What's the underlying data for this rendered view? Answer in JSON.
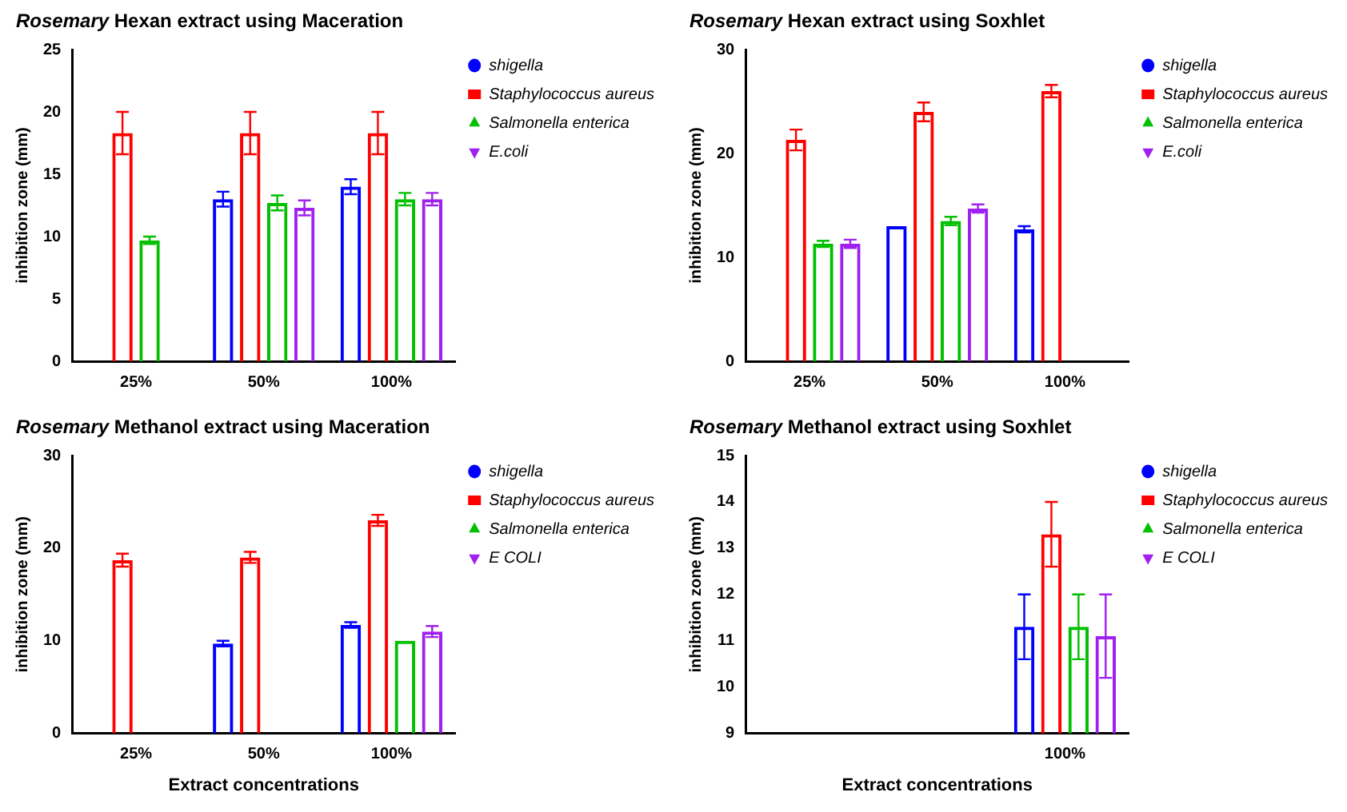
{
  "chart_data": [
    {
      "type": "bar",
      "title": "Rosemary Hexan extract using Maceration",
      "ylabel": "inhibition zone (mm)",
      "categories": [
        "25%",
        "50%",
        "100%"
      ],
      "ylim": [
        0,
        25
      ],
      "yticks": [
        0,
        5,
        10,
        15,
        20,
        25
      ],
      "legend": "right",
      "series": [
        {
          "name": "shigella",
          "color": "#0000ff",
          "marker": "circle",
          "values": [
            0,
            13,
            14
          ],
          "errors": [
            null,
            0.6,
            0.6
          ]
        },
        {
          "name": "Staphylococcus aureus",
          "color": "#ff0000",
          "marker": "square",
          "values": [
            18.3,
            18.3,
            18.3
          ],
          "errors": [
            1.7,
            1.7,
            1.7
          ]
        },
        {
          "name": "Salmonella enterica",
          "color": "#00c000",
          "marker": "triangle",
          "values": [
            9.7,
            12.7,
            13
          ],
          "errors": [
            0.3,
            0.6,
            0.5
          ]
        },
        {
          "name": "E.coli",
          "color": "#a020f0",
          "marker": "triangle",
          "values": [
            0,
            12.3,
            13
          ],
          "errors": [
            null,
            0.6,
            0.5
          ]
        }
      ]
    },
    {
      "type": "bar",
      "title": "Rosemary Hexan extract using Soxhlet",
      "ylabel": "inhibition zone (mm)",
      "categories": [
        "25%",
        "50%",
        "100%"
      ],
      "ylim": [
        0,
        30
      ],
      "yticks": [
        0,
        10,
        20,
        30
      ],
      "legend": "right",
      "series": [
        {
          "name": "shigella",
          "color": "#0000ff",
          "marker": "circle",
          "values": [
            0,
            13,
            12.7
          ],
          "errors": [
            null,
            null,
            0.3
          ]
        },
        {
          "name": "Staphylococcus aureus",
          "color": "#ff0000",
          "marker": "square",
          "values": [
            21.3,
            24,
            26
          ],
          "errors": [
            1,
            0.9,
            0.6
          ]
        },
        {
          "name": "Salmonella enterica",
          "color": "#00c000",
          "marker": "triangle",
          "values": [
            11.3,
            13.5,
            0
          ],
          "errors": [
            0.3,
            0.4,
            null
          ]
        },
        {
          "name": "E.coli",
          "color": "#a020f0",
          "marker": "triangle",
          "values": [
            11.3,
            14.7,
            0
          ],
          "errors": [
            0.4,
            0.4,
            null
          ]
        }
      ]
    },
    {
      "type": "bar",
      "title": "Rosemary Methanol extract using Maceration",
      "ylabel": "inhibition zone (mm)",
      "xlabel": "Extract concentrations",
      "categories": [
        "25%",
        "50%",
        "100%"
      ],
      "ylim": [
        0,
        30
      ],
      "yticks": [
        0,
        10,
        20,
        30
      ],
      "legend": "right",
      "series": [
        {
          "name": "shigella",
          "color": "#0000ff",
          "marker": "circle",
          "values": [
            0,
            9.7,
            11.7
          ],
          "errors": [
            null,
            0.3,
            0.3
          ]
        },
        {
          "name": "Staphylococcus aureus",
          "color": "#ff0000",
          "marker": "square",
          "values": [
            18.7,
            19,
            23
          ],
          "errors": [
            0.7,
            0.6,
            0.6
          ]
        },
        {
          "name": "Salmonella enterica",
          "color": "#00c000",
          "marker": "triangle",
          "values": [
            0,
            0,
            10
          ],
          "errors": [
            null,
            null,
            null
          ]
        },
        {
          "name": "E COLI",
          "color": "#a020f0",
          "marker": "triangle",
          "values": [
            0,
            0,
            11
          ],
          "errors": [
            null,
            null,
            0.6
          ]
        }
      ]
    },
    {
      "type": "bar",
      "title": "Rosemary Methanol extract using Soxhlet",
      "ylabel": "inhibition zone (mm)",
      "xlabel": "Extract concentrations",
      "categories": [
        null,
        null,
        "100%"
      ],
      "ylim": [
        9,
        15
      ],
      "yticks": [
        9,
        10,
        11,
        12,
        13,
        14,
        15
      ],
      "legend": "right",
      "series": [
        {
          "name": "shigella",
          "color": "#0000ff",
          "marker": "circle",
          "values": [
            null,
            null,
            11.3
          ],
          "errors": [
            null,
            null,
            0.7
          ]
        },
        {
          "name": "Staphylococcus aureus",
          "color": "#ff0000",
          "marker": "square",
          "values": [
            null,
            null,
            13.3
          ],
          "errors": [
            null,
            null,
            0.7
          ]
        },
        {
          "name": "Salmonella enterica",
          "color": "#00c000",
          "marker": "triangle",
          "values": [
            null,
            null,
            11.3
          ],
          "errors": [
            null,
            null,
            0.7
          ]
        },
        {
          "name": "E COLI",
          "color": "#a020f0",
          "marker": "triangle",
          "values": [
            null,
            null,
            11.1
          ],
          "errors": [
            null,
            null,
            0.9
          ]
        }
      ]
    }
  ]
}
